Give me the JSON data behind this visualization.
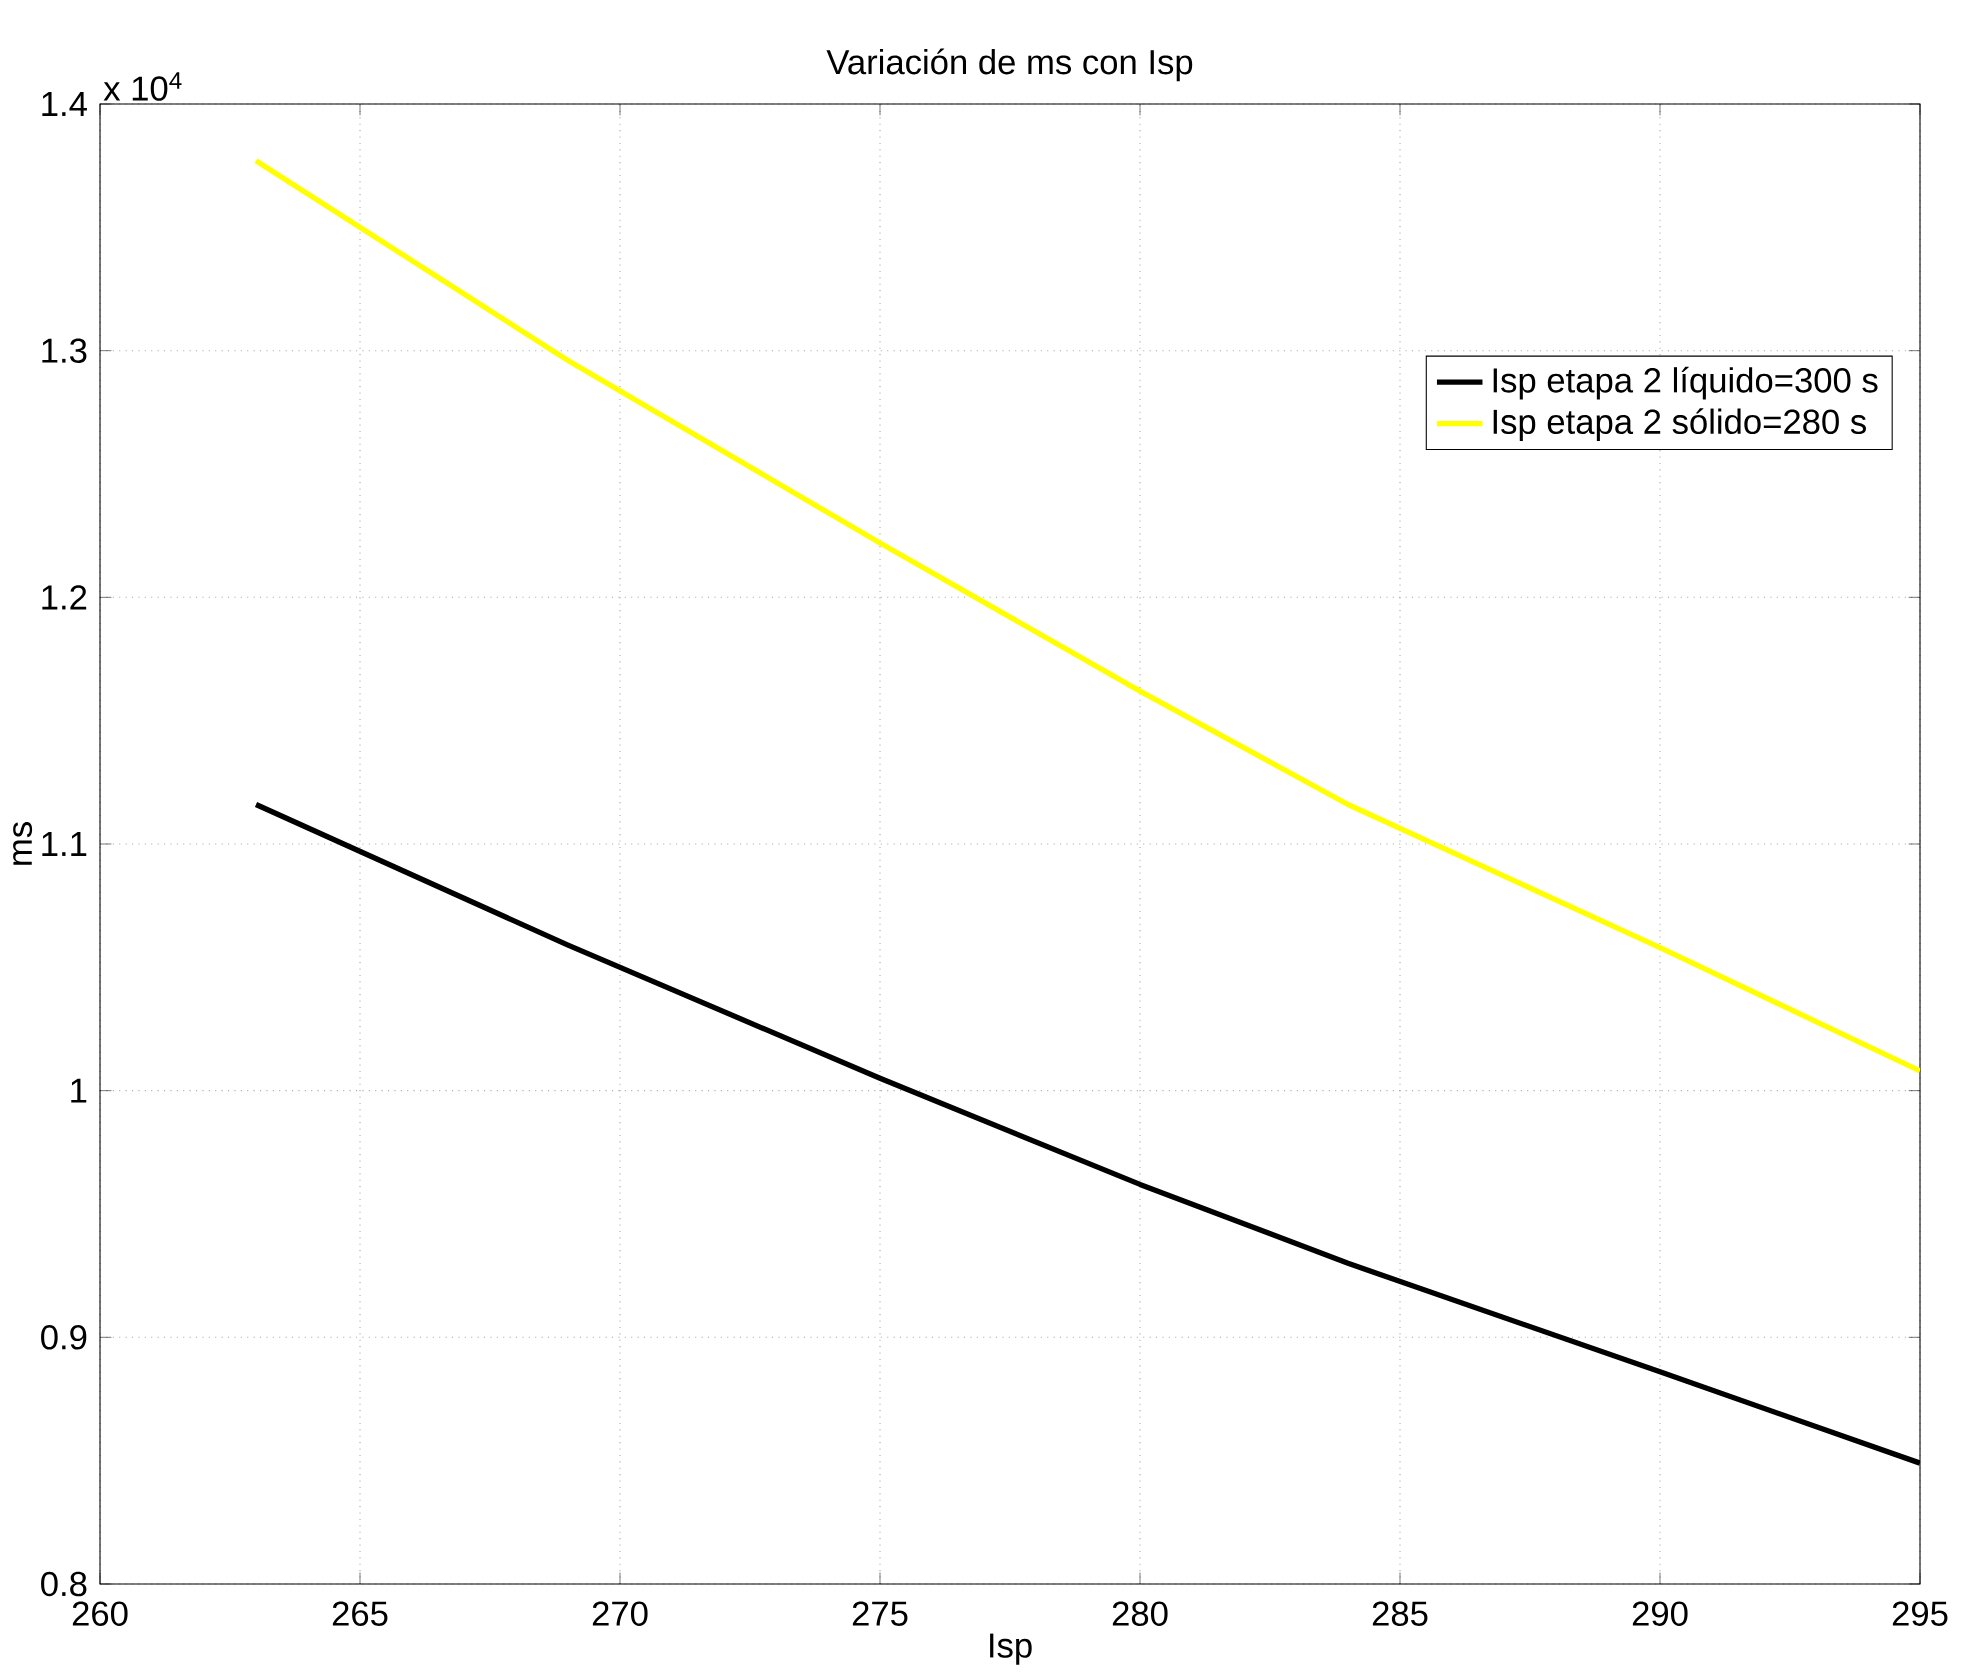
{
  "chart_data": {
    "type": "line",
    "title": "Variación de ms con Isp",
    "xlabel": "Isp",
    "ylabel": "ms",
    "annotations": [
      "x 10$^{4}$"
    ],
    "xlim": [
      260,
      295
    ],
    "ylim": [
      0.8,
      1.4
    ],
    "xticks": [
      260,
      265,
      270,
      275,
      280,
      285,
      290,
      295
    ],
    "yticks": [
      0.8,
      0.9,
      1,
      1.1,
      1.2,
      1.3,
      1.4
    ],
    "grid": true,
    "legend": "top right",
    "line_style": "solid",
    "marker": "none",
    "series": [
      {
        "name": "Isp etapa 2 líquido=300 s",
        "color": "#000000",
        "x": [
          263,
          269,
          275,
          280,
          284,
          290,
          295
        ],
        "values": [
          1.116,
          1.059,
          1.005,
          0.962,
          0.93,
          0.886,
          0.849
        ]
      },
      {
        "name": "Isp etapa 2 sólido=280 s",
        "color": "#ffff00",
        "x": [
          263,
          269,
          275,
          280,
          284,
          290,
          295
        ],
        "values": [
          1.377,
          1.296,
          1.222,
          1.162,
          1.116,
          1.058,
          1.008
        ]
      }
    ]
  }
}
